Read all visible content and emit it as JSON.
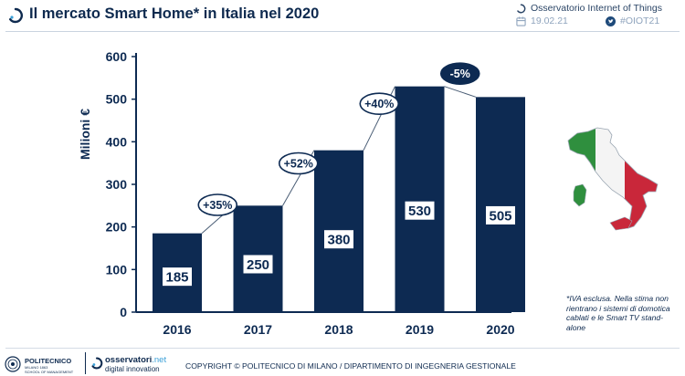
{
  "header": {
    "title": "Il mercato Smart Home* in Italia nel 2020",
    "org": "Osservatorio Internet of Things",
    "date": "19.02.21",
    "hashtag": "#OIOT21"
  },
  "chart_data": {
    "type": "bar",
    "categories": [
      "2016",
      "2017",
      "2018",
      "2019",
      "2020"
    ],
    "values": [
      185,
      250,
      380,
      530,
      505
    ],
    "data_labels": [
      "185",
      "250",
      "380",
      "530",
      "505"
    ],
    "ylabel": "Milioni €",
    "ylim": [
      0,
      600
    ],
    "yticks": [
      0,
      100,
      200,
      300,
      400,
      500,
      600
    ],
    "grid": false,
    "growth_annotations": [
      {
        "from": "2016",
        "to": "2017",
        "label": "+35%"
      },
      {
        "from": "2017",
        "to": "2018",
        "label": "+52%"
      },
      {
        "from": "2018",
        "to": "2019",
        "label": "+40%"
      },
      {
        "from": "2019",
        "to": "2020",
        "label": "-5%"
      }
    ],
    "colors": {
      "bar": "#0d2a52",
      "axis": "#0d2a52",
      "label_box": "#ffffff",
      "negative_badge": "#0d2a52"
    }
  },
  "footnote": "*IVA esclusa. Nella stima non rientrano i sistemi di domotica cablati e le Smart TV stand-alone",
  "map": {
    "icon": "italy-flag-map-icon",
    "colors": {
      "green": "#2f8f3e",
      "white": "#f4f4f4",
      "red": "#c9273a"
    }
  },
  "footer": {
    "polimi_name": "POLITECNICO",
    "polimi_sub": "MILANO 1863",
    "polimi_school": "SCHOOL OF MANAGEMENT",
    "oss_name_main": "osservatori",
    "oss_name_ext": ".net",
    "oss_sub": "digital innovation",
    "copyright": "COPYRIGHT © POLITECNICO DI MILANO / DIPARTIMENTO DI INGEGNERIA GESTIONALE"
  }
}
